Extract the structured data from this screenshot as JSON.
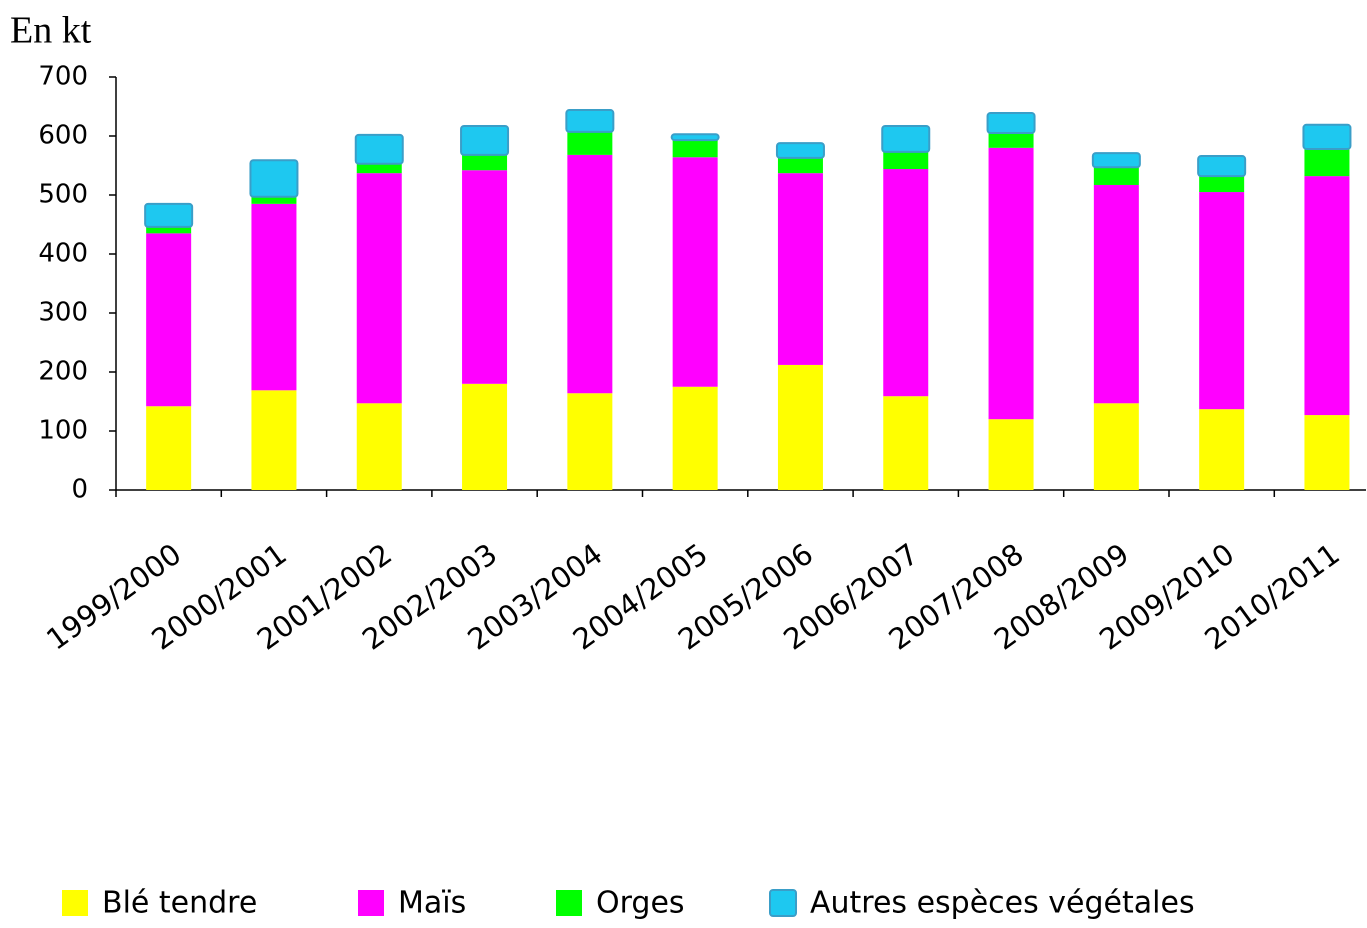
{
  "chart_data": {
    "type": "stacked_bar",
    "y_label": "En kt",
    "categories": [
      "1999/2000",
      "2000/2001",
      "2001/2002",
      "2002/2003",
      "2003/2004",
      "2004/2005",
      "2005/2006",
      "2006/2007",
      "2007/2008",
      "2008/2009",
      "2009/2010",
      "2010/2011"
    ],
    "series": [
      {
        "name": "Blé tendre",
        "color": "#ffff00",
        "values": [
          142,
          169,
          147,
          180,
          164,
          175,
          212,
          159,
          120,
          147,
          137,
          127
        ]
      },
      {
        "name": "Maïs",
        "color": "#ff00ff",
        "values": [
          293,
          316,
          390,
          362,
          404,
          389,
          325,
          385,
          460,
          370,
          368,
          405
        ]
      },
      {
        "name": "Orges",
        "color": "#00ff00",
        "values": [
          11,
          12,
          16,
          26,
          39,
          29,
          26,
          29,
          25,
          30,
          27,
          46
        ]
      },
      {
        "name": "Autres espèces végétales",
        "color": "#1ec8f0",
        "values": [
          39,
          62,
          49,
          49,
          37,
          10,
          25,
          44,
          34,
          24,
          34,
          41
        ]
      }
    ],
    "ylim": [
      0,
      700
    ],
    "yticks": [
      0,
      100,
      200,
      300,
      400,
      500,
      600,
      700
    ]
  }
}
